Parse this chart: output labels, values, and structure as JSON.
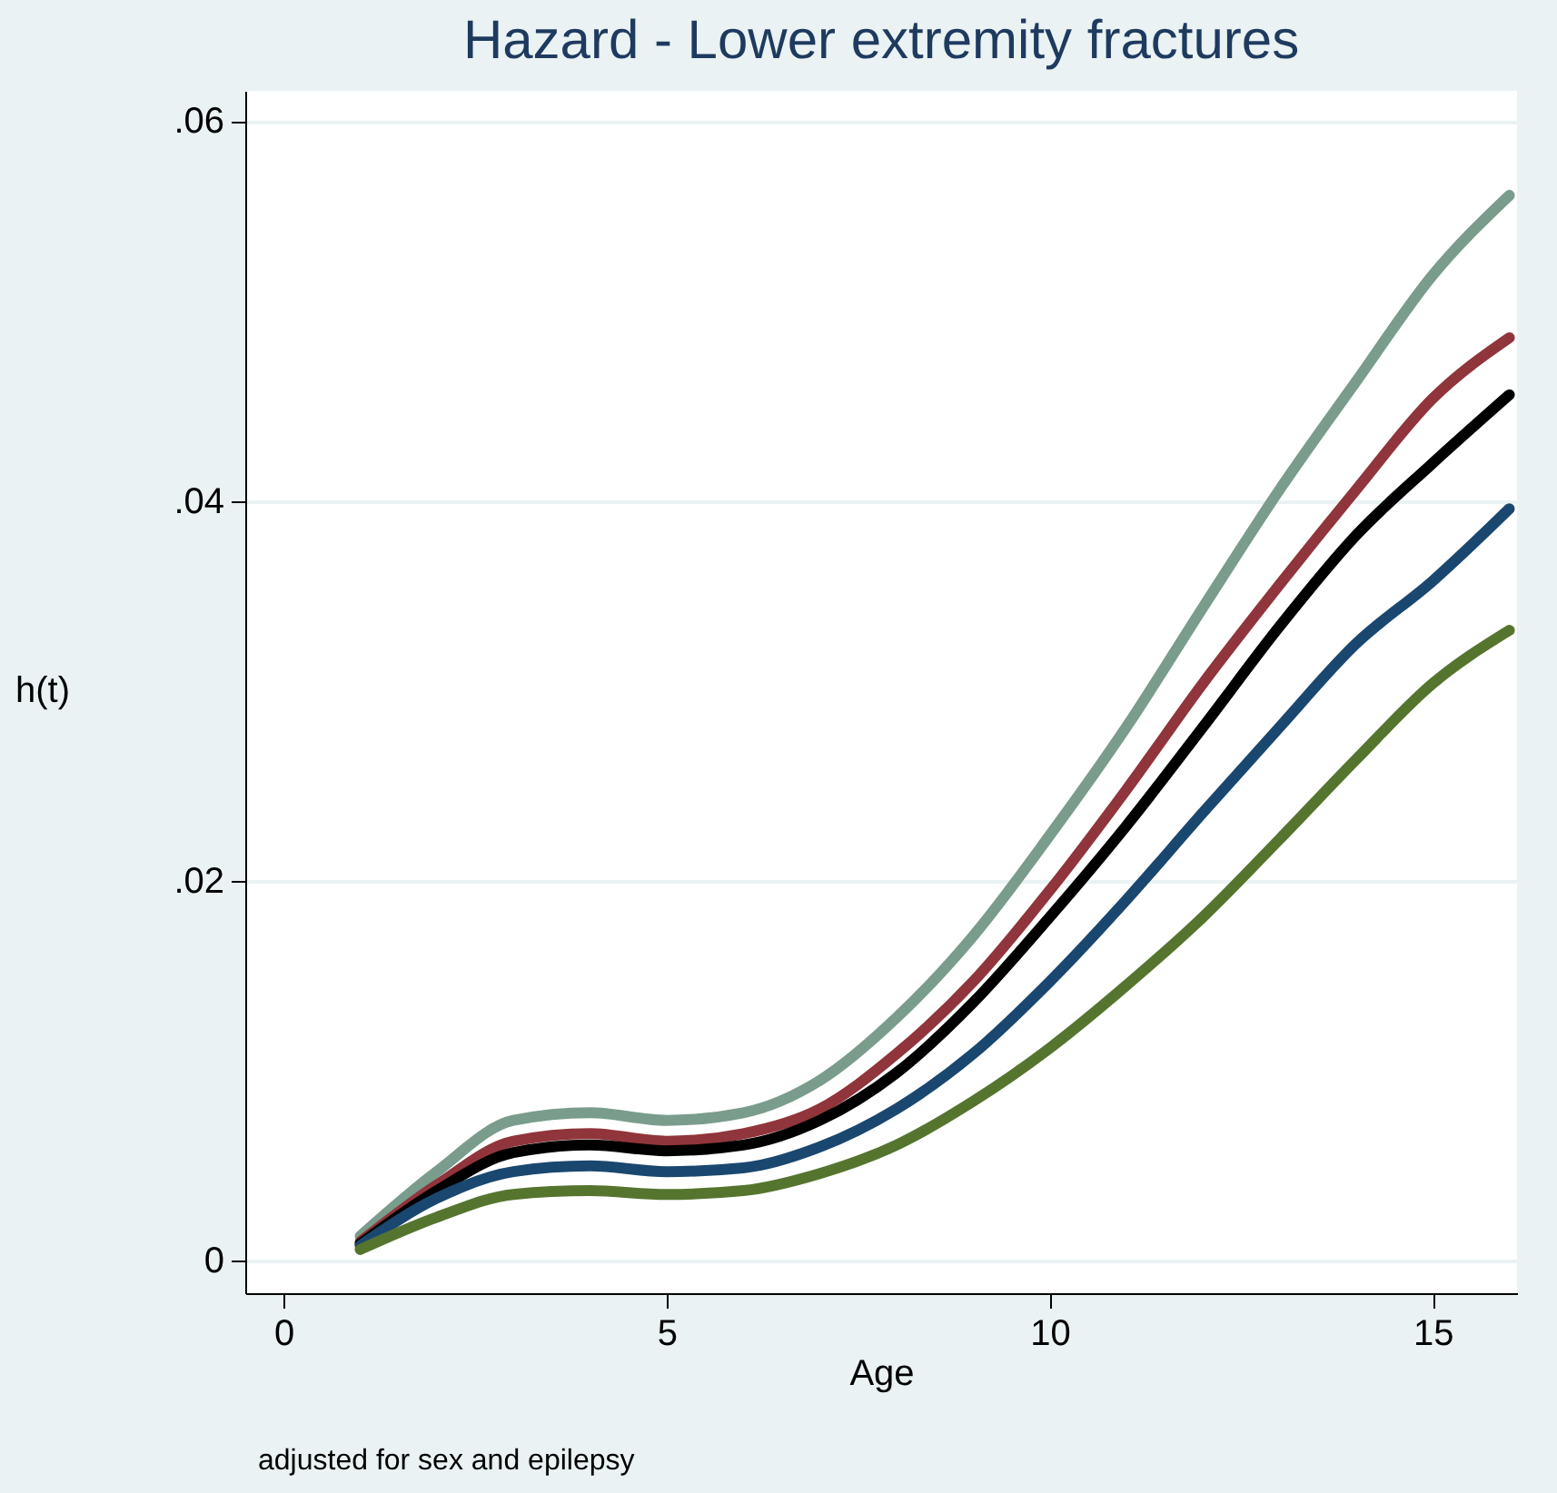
{
  "chart_data": {
    "type": "line",
    "title": "Hazard - Lower extremity fractures",
    "xlabel": "Age",
    "ylabel": "h(t)",
    "annotations": [
      "adjusted for sex and epilepsy"
    ],
    "x": [
      1,
      2,
      3,
      4,
      5,
      6,
      7,
      8,
      9,
      10,
      11,
      12,
      13,
      14,
      15,
      16
    ],
    "series": [
      {
        "color": "#7a9c8c",
        "values": [
          0.0013,
          0.0047,
          0.0074,
          0.0078,
          0.0074,
          0.0078,
          0.0095,
          0.0128,
          0.0171,
          0.0224,
          0.0281,
          0.0344,
          0.0406,
          0.0463,
          0.0519,
          0.0561
        ]
      },
      {
        "color": "#90353b",
        "values": [
          0.001,
          0.004,
          0.0063,
          0.0067,
          0.0063,
          0.0067,
          0.008,
          0.0109,
          0.0147,
          0.0195,
          0.0248,
          0.0304,
          0.0356,
          0.0406,
          0.0454,
          0.0486
        ]
      },
      {
        "color": "#000000",
        "values": [
          0.0009,
          0.0037,
          0.0057,
          0.0061,
          0.0058,
          0.0061,
          0.0074,
          0.0099,
          0.0136,
          0.0181,
          0.0229,
          0.0281,
          0.0334,
          0.0382,
          0.042,
          0.0456
        ]
      },
      {
        "color": "#1a476f",
        "values": [
          0.0008,
          0.0033,
          0.0047,
          0.005,
          0.0047,
          0.0049,
          0.006,
          0.008,
          0.0109,
          0.0147,
          0.019,
          0.0236,
          0.0281,
          0.0325,
          0.0358,
          0.0396
        ]
      },
      {
        "color": "#55752f",
        "values": [
          0.0006,
          0.0023,
          0.0035,
          0.0037,
          0.0035,
          0.0037,
          0.0046,
          0.0061,
          0.0084,
          0.0112,
          0.0145,
          0.0181,
          0.0222,
          0.0264,
          0.0304,
          0.0332
        ]
      }
    ],
    "xlim": [
      -0.5,
      16.1
    ],
    "xticks": [
      0,
      5,
      10,
      15
    ],
    "ylim": [
      -0.0017,
      0.0616
    ],
    "yticks": [
      {
        "value": 0,
        "label": "0"
      },
      {
        "value": 0.02,
        "label": ".02"
      },
      {
        "value": 0.04,
        "label": ".04"
      },
      {
        "value": 0.06,
        "label": ".06"
      }
    ],
    "grid": "y",
    "marker": "none",
    "line_style": "solid"
  }
}
